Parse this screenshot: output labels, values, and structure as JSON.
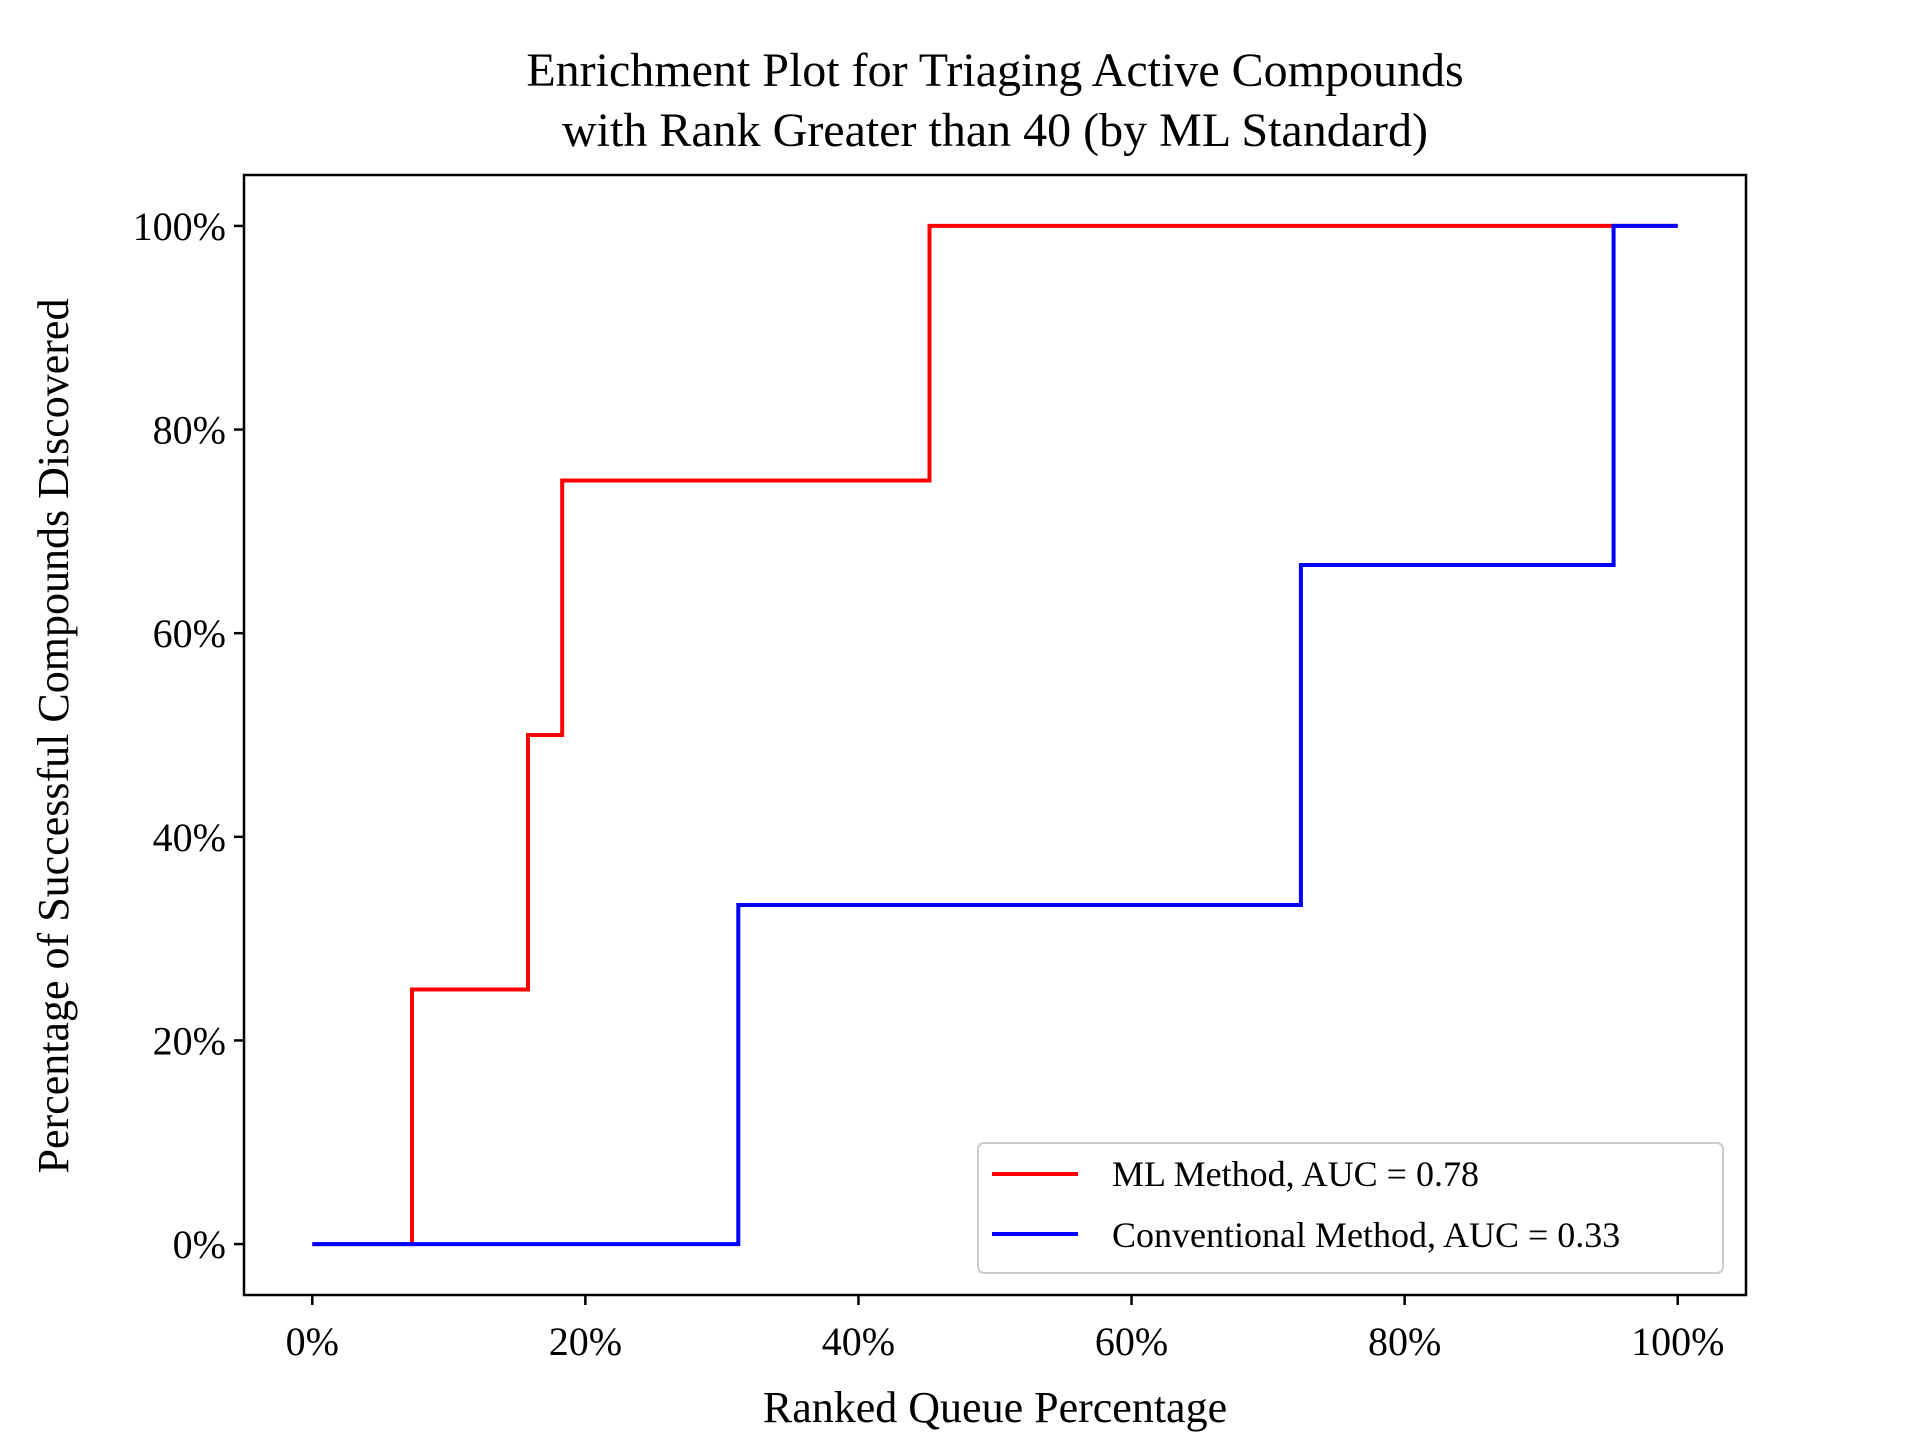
{
  "chart_data": {
    "type": "line",
    "step": "post",
    "title_lines": [
      "Enrichment Plot for Triaging Active Compounds",
      "with Rank Greater than 40 (by ML Standard)"
    ],
    "xlabel": "Ranked Queue Percentage",
    "ylabel": "Percentage of Successful Compounds Discovered",
    "xlim": [
      -5,
      105
    ],
    "ylim": [
      -5,
      105
    ],
    "x_ticks": [
      0,
      20,
      40,
      60,
      80,
      100
    ],
    "x_tick_labels": [
      "0%",
      "20%",
      "40%",
      "60%",
      "80%",
      "100%"
    ],
    "y_ticks": [
      0,
      20,
      40,
      60,
      80,
      100
    ],
    "y_tick_labels": [
      "0%",
      "20%",
      "40%",
      "60%",
      "80%",
      "100%"
    ],
    "grid": false,
    "legend_position": "lower-right",
    "series": [
      {
        "name": "ML Method, AUC = 0.78",
        "color": "#ff0000",
        "x": [
          0,
          7.3,
          15.8,
          18.3,
          45.2,
          100
        ],
        "y": [
          0,
          25,
          50,
          75,
          100,
          100
        ]
      },
      {
        "name": "Conventional Method, AUC = 0.33",
        "color": "#0000ff",
        "x": [
          0,
          31.2,
          72.4,
          95.3,
          100
        ],
        "y": [
          0,
          33.3,
          66.7,
          100,
          100
        ]
      }
    ]
  }
}
